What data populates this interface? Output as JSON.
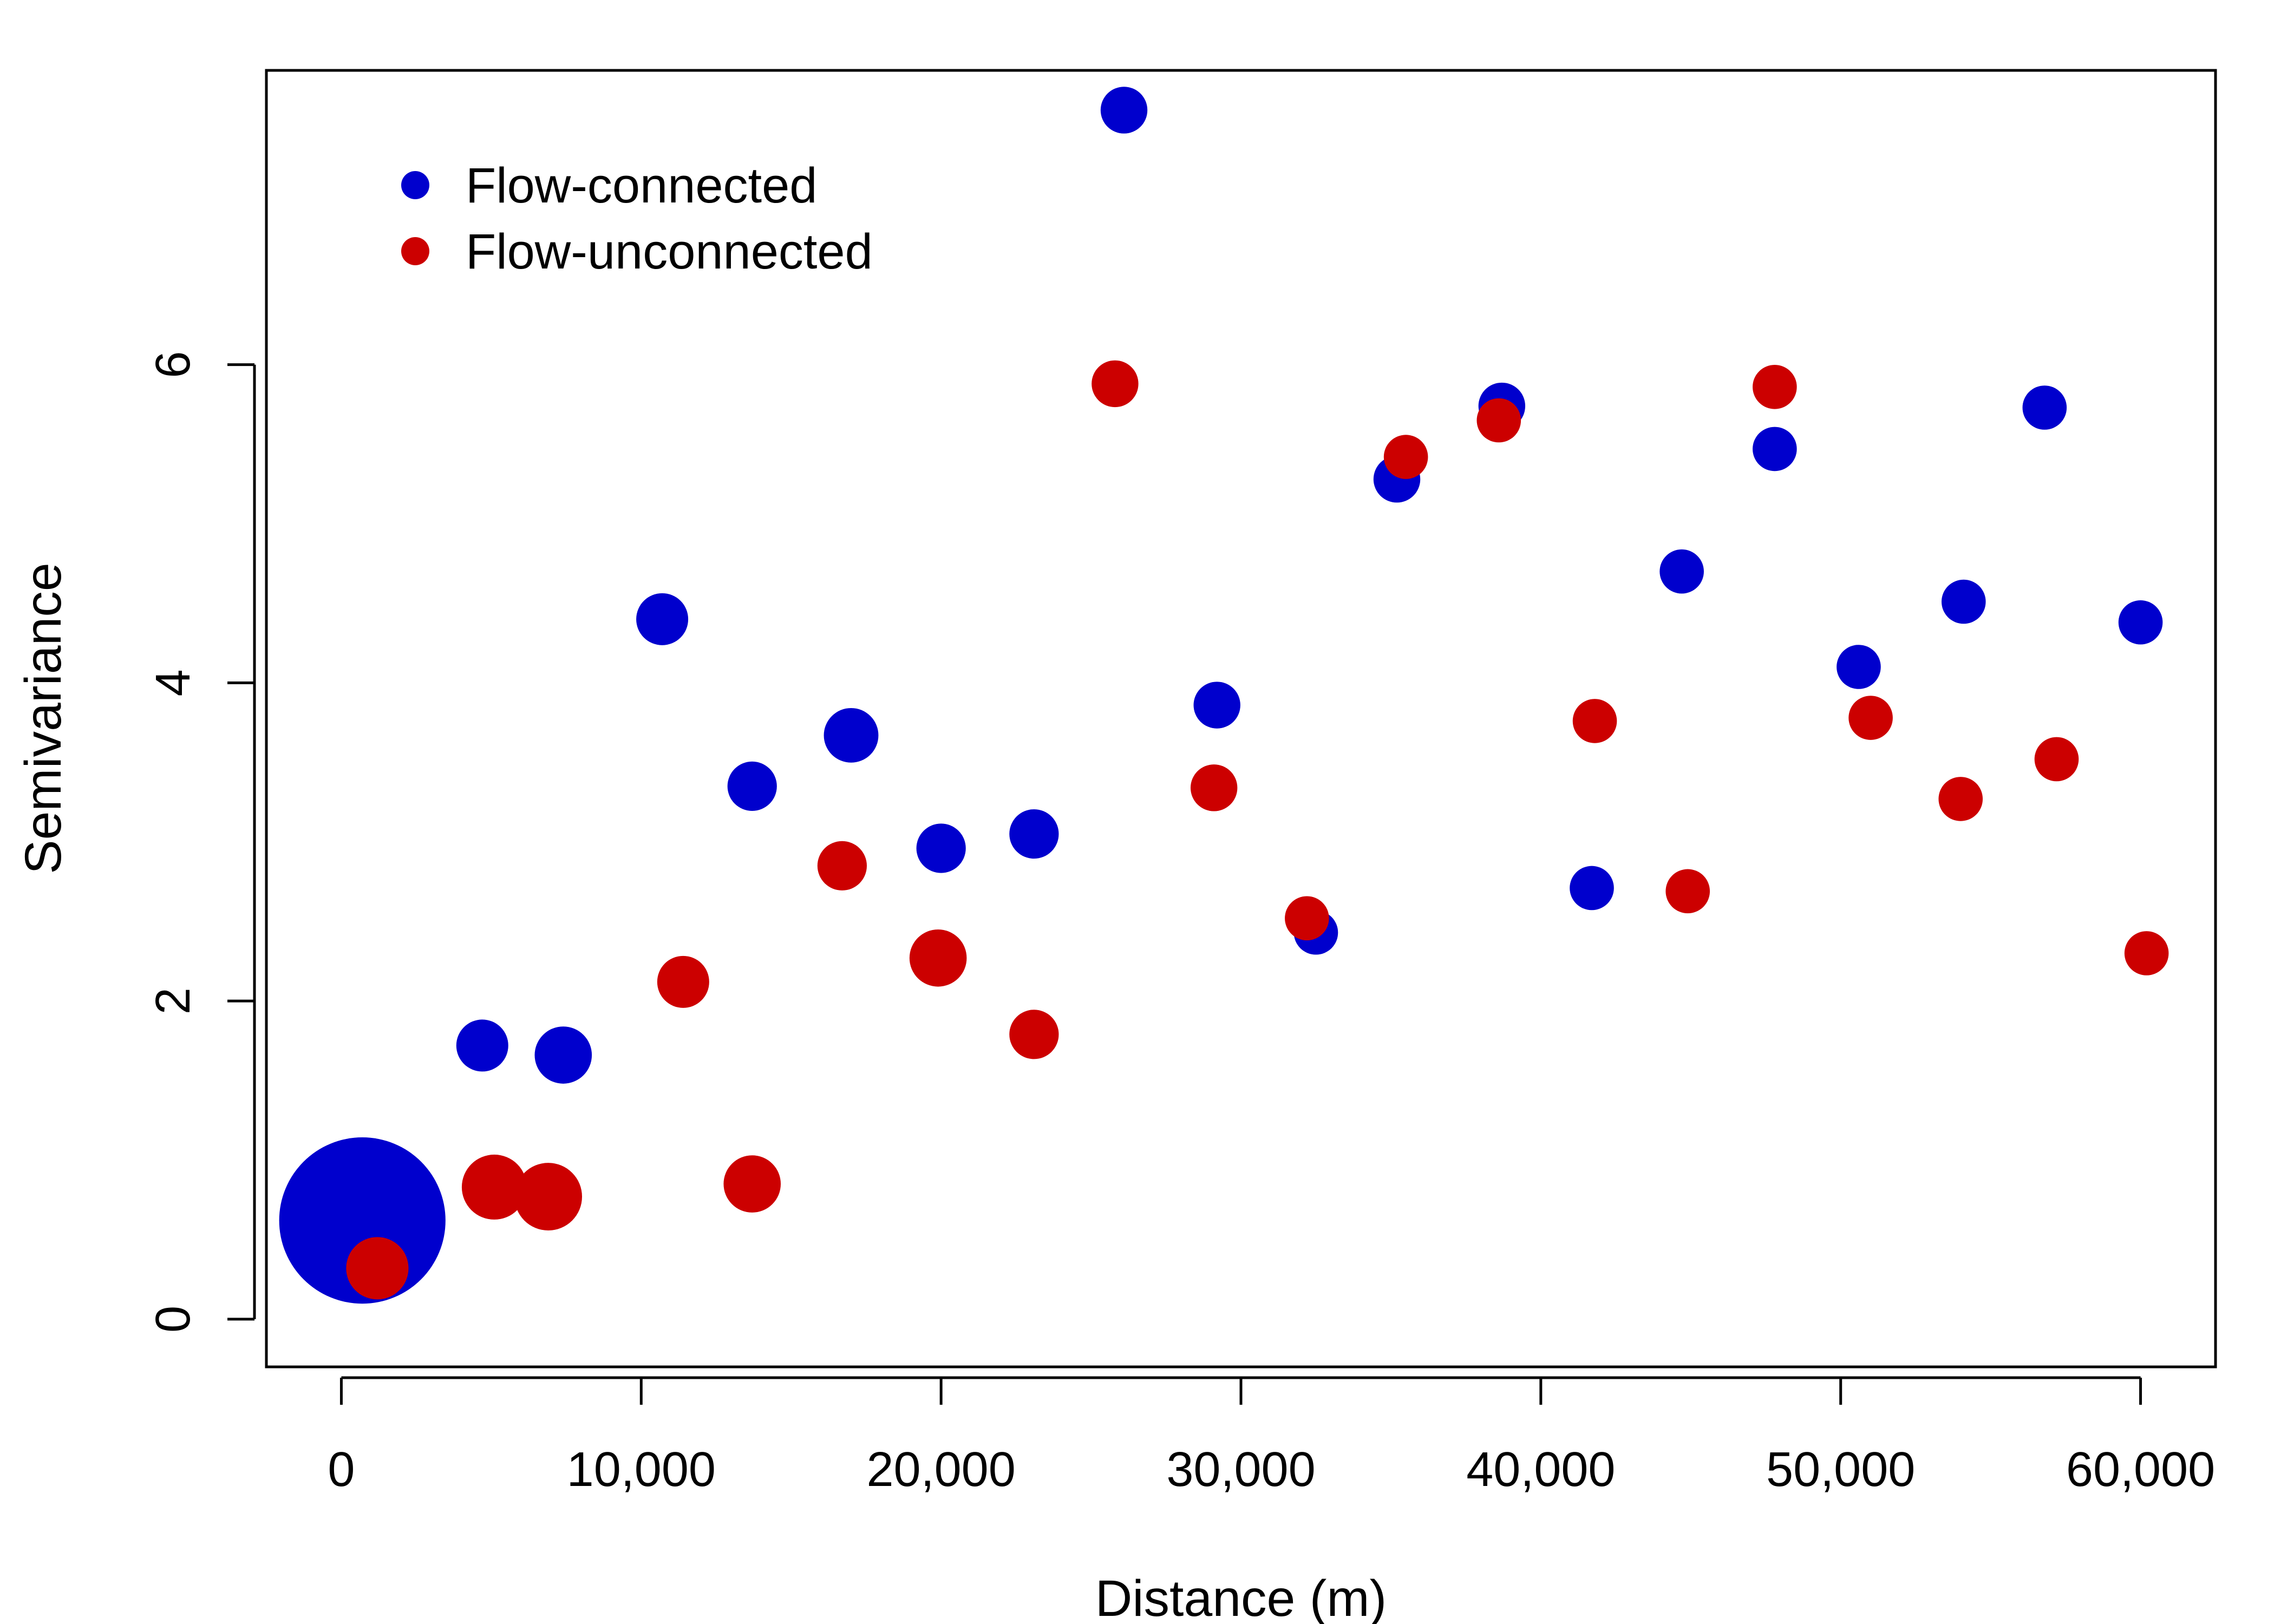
{
  "chart_data": {
    "type": "scatter",
    "title": "",
    "xlabel": "Distance (m)",
    "ylabel": "Semivariance",
    "xlim": [
      -2500,
      62500
    ],
    "ylim": [
      -0.3,
      7.85
    ],
    "x_ticks": [
      0,
      10000,
      20000,
      30000,
      40000,
      50000,
      60000
    ],
    "x_tick_labels": [
      "0",
      "10,000",
      "20,000",
      "30,000",
      "40,000",
      "50,000",
      "60,000"
    ],
    "y_ticks": [
      0,
      2,
      4,
      6
    ],
    "y_tick_labels": [
      "0",
      "2",
      "4",
      "6"
    ],
    "grid": false,
    "legend_position": "top-left",
    "series": [
      {
        "name": "Flow-connected",
        "color": "#0000CD",
        "points": [
          {
            "x": 700,
            "y": 0.62,
            "size": 3.2
          },
          {
            "x": 4700,
            "y": 1.72,
            "size": 1.0
          },
          {
            "x": 7400,
            "y": 1.66,
            "size": 1.1
          },
          {
            "x": 10700,
            "y": 4.4,
            "size": 1.0
          },
          {
            "x": 13700,
            "y": 3.35,
            "size": 0.95
          },
          {
            "x": 17000,
            "y": 3.67,
            "size": 1.05
          },
          {
            "x": 20000,
            "y": 2.96,
            "size": 0.95
          },
          {
            "x": 23100,
            "y": 3.05,
            "size": 0.95
          },
          {
            "x": 26100,
            "y": 7.6,
            "size": 0.9
          },
          {
            "x": 29200,
            "y": 3.86,
            "size": 0.9
          },
          {
            "x": 32500,
            "y": 2.43,
            "size": 0.85
          },
          {
            "x": 35200,
            "y": 5.28,
            "size": 0.9
          },
          {
            "x": 38700,
            "y": 5.74,
            "size": 0.9
          },
          {
            "x": 41700,
            "y": 2.71,
            "size": 0.85
          },
          {
            "x": 44700,
            "y": 4.7,
            "size": 0.85
          },
          {
            "x": 47800,
            "y": 5.47,
            "size": 0.85
          },
          {
            "x": 50600,
            "y": 4.1,
            "size": 0.85
          },
          {
            "x": 54100,
            "y": 4.51,
            "size": 0.85
          },
          {
            "x": 56800,
            "y": 5.73,
            "size": 0.85
          },
          {
            "x": 60000,
            "y": 4.38,
            "size": 0.85
          }
        ]
      },
      {
        "name": "Flow-unconnected",
        "color": "#CC0000",
        "points": [
          {
            "x": 1200,
            "y": 0.32,
            "size": 1.2
          },
          {
            "x": 5100,
            "y": 0.83,
            "size": 1.25
          },
          {
            "x": 6900,
            "y": 0.77,
            "size": 1.3
          },
          {
            "x": 11400,
            "y": 2.12,
            "size": 1.0
          },
          {
            "x": 13700,
            "y": 0.85,
            "size": 1.1
          },
          {
            "x": 16700,
            "y": 2.85,
            "size": 0.95
          },
          {
            "x": 19900,
            "y": 2.27,
            "size": 1.1
          },
          {
            "x": 23100,
            "y": 1.79,
            "size": 0.95
          },
          {
            "x": 25800,
            "y": 5.88,
            "size": 0.9
          },
          {
            "x": 29100,
            "y": 3.34,
            "size": 0.9
          },
          {
            "x": 32200,
            "y": 2.52,
            "size": 0.85
          },
          {
            "x": 35500,
            "y": 5.42,
            "size": 0.85
          },
          {
            "x": 38600,
            "y": 5.65,
            "size": 0.85
          },
          {
            "x": 41800,
            "y": 3.76,
            "size": 0.85
          },
          {
            "x": 44900,
            "y": 2.69,
            "size": 0.85
          },
          {
            "x": 47800,
            "y": 5.86,
            "size": 0.85
          },
          {
            "x": 51000,
            "y": 3.78,
            "size": 0.85
          },
          {
            "x": 54000,
            "y": 3.27,
            "size": 0.85
          },
          {
            "x": 57200,
            "y": 3.52,
            "size": 0.85
          },
          {
            "x": 60200,
            "y": 2.3,
            "size": 0.85
          }
        ]
      }
    ]
  }
}
